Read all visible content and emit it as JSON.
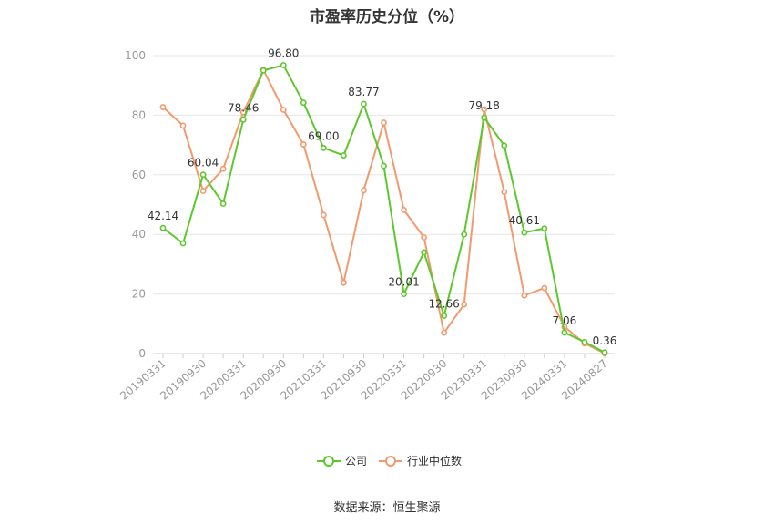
{
  "title": "市盈率历史分位（%）",
  "source": "数据来源：恒生聚源",
  "chart_data": {
    "type": "line",
    "title": "市盈率历史分位（%）",
    "ylim": [
      0,
      100
    ],
    "yticks": [
      0,
      20,
      40,
      60,
      80,
      100
    ],
    "grid": true,
    "legend_position": "bottom",
    "x": [
      "20190331",
      "20190630",
      "20190930",
      "20191231",
      "20200331",
      "20200630",
      "20200930",
      "20201231",
      "20210331",
      "20210630",
      "20210930",
      "20211231",
      "20220331",
      "20220630",
      "20220930",
      "20221231",
      "20230331",
      "20230630",
      "20230930",
      "20231231",
      "20240331",
      "20240630",
      "20240827"
    ],
    "x_tick_labels": [
      "20190331",
      "20190930",
      "20200331",
      "20200930",
      "20210331",
      "20210930",
      "20220331",
      "20220930",
      "20230331",
      "20230930",
      "20240331",
      "20240827"
    ],
    "series": [
      {
        "name": "公司",
        "color": "#5cc82d",
        "values": [
          42.14,
          37.0,
          60.04,
          50.3,
          78.46,
          95.0,
          96.8,
          84.2,
          69.0,
          66.5,
          83.77,
          63.0,
          20.01,
          34.0,
          12.66,
          40.0,
          79.18,
          69.8,
          40.61,
          42.0,
          7.06,
          3.9,
          0.36
        ],
        "labels": {
          "0": "42.14",
          "2": "60.04",
          "4": "78.46",
          "6": "96.80",
          "8": "69.00",
          "10": "83.77",
          "12": "20.01",
          "14": "12.66",
          "16": "79.18",
          "18": "40.61",
          "20": "7.06",
          "22": "0.36"
        }
      },
      {
        "name": "行业中位数",
        "color": "#f29a6e",
        "values": [
          82.7,
          76.5,
          54.6,
          62.0,
          81.0,
          95.2,
          81.8,
          70.2,
          46.5,
          23.8,
          54.8,
          77.5,
          48.2,
          39.0,
          7.0,
          16.5,
          82.0,
          54.2,
          19.5,
          22.0,
          9.0,
          3.4,
          0.1
        ]
      }
    ]
  }
}
